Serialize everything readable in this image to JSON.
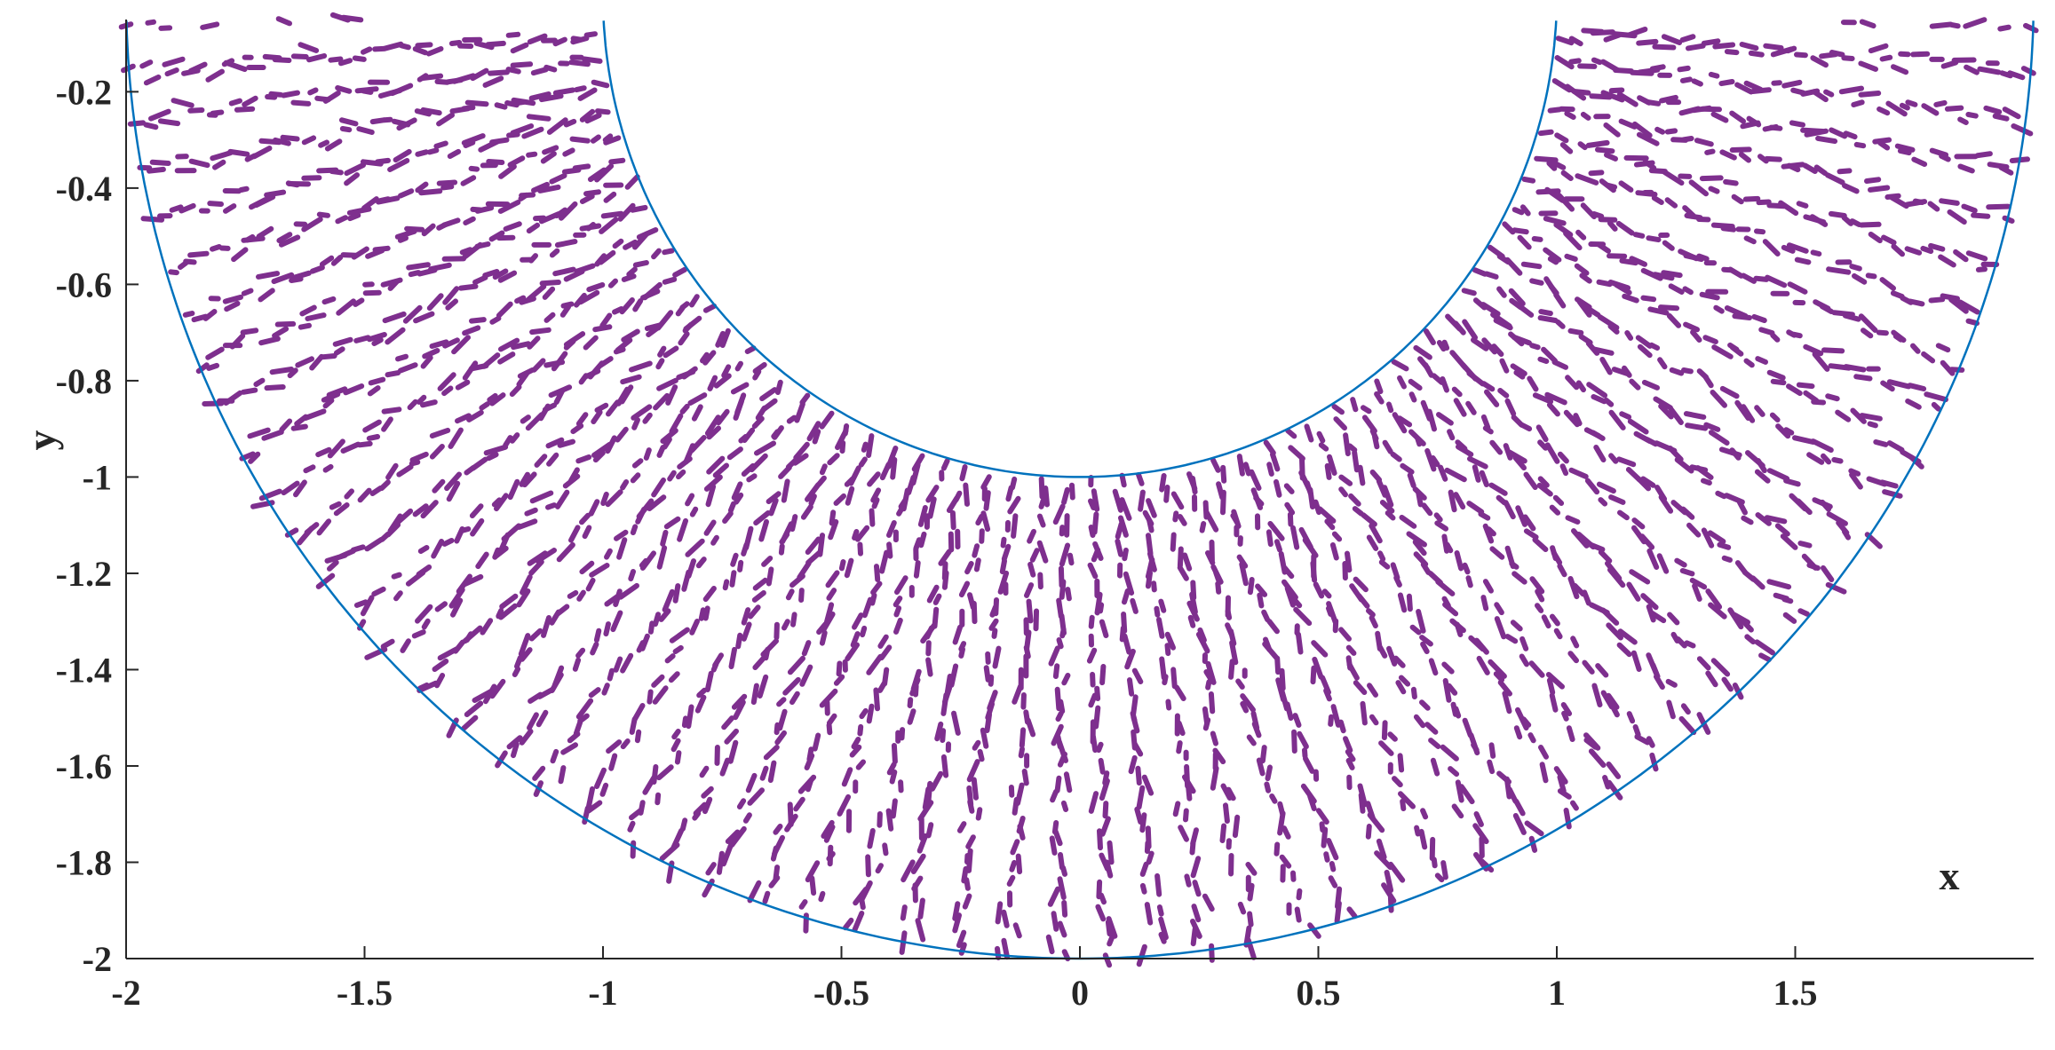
{
  "chart_data": {
    "type": "scatter",
    "title": "",
    "xlabel": "x",
    "ylabel": "y",
    "xlim": [
      -2,
      2
    ],
    "ylim": [
      -2,
      -0.05
    ],
    "x_ticks": [
      -2,
      -1.5,
      -1,
      -0.5,
      0,
      0.5,
      1,
      1.5
    ],
    "x_tick_labels": [
      "-2",
      "-1.5",
      "-1",
      "-0.5",
      "0",
      "0.5",
      "1",
      "1.5"
    ],
    "y_ticks": [
      -2,
      -1.8,
      -1.6,
      -1.4,
      -1.2,
      -1,
      -0.8,
      -0.6,
      -0.4,
      -0.2
    ],
    "y_tick_labels": [
      "-2",
      "-1.8",
      "-1.6",
      "-1.4",
      "-1.2",
      "-1",
      "-0.8",
      "-0.6",
      "-0.4",
      "-0.2"
    ],
    "grid": false,
    "boundaries": [
      {
        "kind": "lower-semicircle",
        "center": [
          0,
          0
        ],
        "radius": 1,
        "color": "#0072BD"
      },
      {
        "kind": "lower-semicircle",
        "center": [
          0,
          0
        ],
        "radius": 2,
        "color": "#0072BD"
      }
    ],
    "scatter_region": {
      "kind": "annulus-lower-half",
      "r_inner": 1,
      "r_outer": 2,
      "radial_rays": 60,
      "points_per_ray": 40,
      "color": "#7E2F8E"
    }
  }
}
